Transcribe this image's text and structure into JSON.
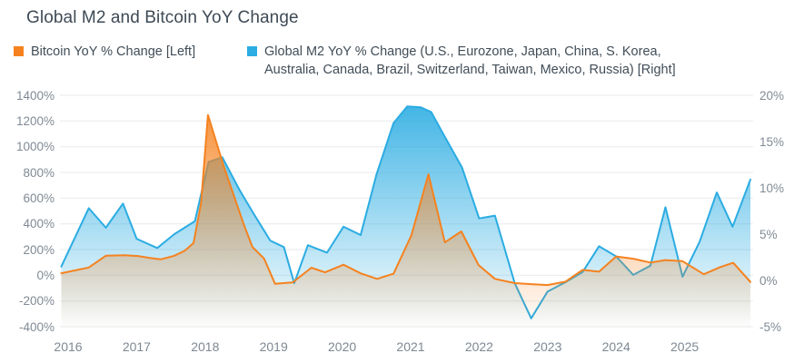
{
  "title": "Global M2 and Bitcoin YoY Change",
  "legend": [
    {
      "label": "Bitcoin YoY % Change [Left]",
      "color": "#F5821F"
    },
    {
      "label_line1": "Global M2 YoY % Change (U.S., Eurozone, Japan, China, S. Korea,",
      "label_line2": "Australia, Canada, Brazil, Switzerland, Taiwan, Mexico, Russia) [Right]",
      "color": "#2BACE2"
    }
  ],
  "colors": {
    "bitcoin_orange": "#F5821F",
    "m2_blue": "#2BACE2",
    "gridline": "#e7eaec",
    "axis_text": "#808a94",
    "title_text": "#3e4a55"
  },
  "chart_data": {
    "type": "area",
    "title": "Global M2 and Bitcoin YoY Change",
    "grid": true,
    "x_domain": [
      2015.88,
      2026.0
    ],
    "x_ticks": [
      {
        "label": "2016",
        "value": 2016
      },
      {
        "label": "2017",
        "value": 2017
      },
      {
        "label": "2018",
        "value": 2018
      },
      {
        "label": "2019",
        "value": 2019
      },
      {
        "label": "2020",
        "value": 2020
      },
      {
        "label": "2021",
        "value": 2021
      },
      {
        "label": "2022",
        "value": 2022
      },
      {
        "label": "2023",
        "value": 2023
      },
      {
        "label": "2024",
        "value": 2024
      },
      {
        "label": "2025",
        "value": 2025
      }
    ],
    "left_axis": {
      "min": -400,
      "max": 1400,
      "unit": "%",
      "ticks": [
        {
          "label": "1400%",
          "value": 1400
        },
        {
          "label": "1200%",
          "value": 1200
        },
        {
          "label": "1000%",
          "value": 1000
        },
        {
          "label": "800%",
          "value": 800
        },
        {
          "label": "600%",
          "value": 600
        },
        {
          "label": "400%",
          "value": 400
        },
        {
          "label": "200%",
          "value": 200
        },
        {
          "label": "0%",
          "value": 0
        },
        {
          "label": "-200%",
          "value": -200
        },
        {
          "label": "-400%",
          "value": -400
        }
      ]
    },
    "right_axis": {
      "min": -5,
      "max": 20,
      "unit": "%",
      "ticks": [
        {
          "label": "20%",
          "value": 20
        },
        {
          "label": "15%",
          "value": 15
        },
        {
          "label": "10%",
          "value": 10
        },
        {
          "label": "5%",
          "value": 5
        },
        {
          "label": "0%",
          "value": 0
        },
        {
          "label": "-5%",
          "value": -5
        }
      ]
    },
    "series": [
      {
        "name": "Bitcoin YoY % Change [Left]",
        "axis": "left",
        "color": "#F5821F",
        "points": [
          [
            2015.9,
            16
          ],
          [
            2016.16,
            45
          ],
          [
            2016.3,
            60
          ],
          [
            2016.55,
            152
          ],
          [
            2016.82,
            156
          ],
          [
            2017.02,
            150
          ],
          [
            2017.19,
            135
          ],
          [
            2017.35,
            124
          ],
          [
            2017.55,
            152
          ],
          [
            2017.7,
            190
          ],
          [
            2017.83,
            250
          ],
          [
            2017.94,
            560
          ],
          [
            2018.04,
            1247
          ],
          [
            2018.27,
            850
          ],
          [
            2018.47,
            540
          ],
          [
            2018.56,
            400
          ],
          [
            2018.69,
            220
          ],
          [
            2018.86,
            130
          ],
          [
            2019.02,
            -66
          ],
          [
            2019.28,
            -55
          ],
          [
            2019.55,
            59
          ],
          [
            2019.75,
            23
          ],
          [
            2020.02,
            82
          ],
          [
            2020.27,
            15
          ],
          [
            2020.51,
            -28
          ],
          [
            2020.75,
            12
          ],
          [
            2021.01,
            310
          ],
          [
            2021.26,
            786
          ],
          [
            2021.5,
            256
          ],
          [
            2021.74,
            341
          ],
          [
            2021.99,
            80
          ],
          [
            2022.23,
            -28
          ],
          [
            2022.52,
            -61
          ],
          [
            2022.76,
            -69
          ],
          [
            2023.0,
            -76
          ],
          [
            2023.26,
            -50
          ],
          [
            2023.51,
            42
          ],
          [
            2023.75,
            28
          ],
          [
            2024.0,
            146
          ],
          [
            2024.25,
            129
          ],
          [
            2024.5,
            99
          ],
          [
            2024.72,
            118
          ],
          [
            2024.97,
            110
          ],
          [
            2025.28,
            8
          ],
          [
            2025.52,
            64
          ],
          [
            2025.71,
            97
          ],
          [
            2025.96,
            -52
          ]
        ]
      },
      {
        "name": "Global M2 YoY % Change (U.S., Eurozone, Japan, China, S. Korea, Australia, Canada, Brazil, Switzerland, Taiwan, Mexico, Russia) [Right]",
        "axis": "right",
        "color": "#2BACE2",
        "points": [
          [
            2015.9,
            1.5
          ],
          [
            2016.3,
            7.8
          ],
          [
            2016.55,
            5.7
          ],
          [
            2016.8,
            8.3
          ],
          [
            2017.0,
            4.5
          ],
          [
            2017.3,
            3.5
          ],
          [
            2017.55,
            5.0
          ],
          [
            2017.7,
            5.7
          ],
          [
            2017.85,
            6.4
          ],
          [
            2018.05,
            12.8
          ],
          [
            2018.25,
            13.3
          ],
          [
            2018.5,
            9.8
          ],
          [
            2018.7,
            7.3
          ],
          [
            2018.95,
            4.3
          ],
          [
            2019.15,
            3.6
          ],
          [
            2019.3,
            -0.3
          ],
          [
            2019.5,
            3.8
          ],
          [
            2019.78,
            3.0
          ],
          [
            2020.02,
            5.8
          ],
          [
            2020.27,
            4.9
          ],
          [
            2020.5,
            11.4
          ],
          [
            2020.75,
            17.0
          ],
          [
            2020.95,
            18.8
          ],
          [
            2021.15,
            18.7
          ],
          [
            2021.3,
            18.2
          ],
          [
            2021.5,
            15.5
          ],
          [
            2021.75,
            12.2
          ],
          [
            2022.0,
            6.7
          ],
          [
            2022.23,
            7.0
          ],
          [
            2022.52,
            -0.3
          ],
          [
            2022.76,
            -4.1
          ],
          [
            2023.0,
            -1.2
          ],
          [
            2023.26,
            -0.2
          ],
          [
            2023.51,
            0.9
          ],
          [
            2023.75,
            3.7
          ],
          [
            2024.0,
            2.6
          ],
          [
            2024.25,
            0.6
          ],
          [
            2024.5,
            1.6
          ],
          [
            2024.72,
            7.9
          ],
          [
            2024.97,
            0.4
          ],
          [
            2025.22,
            4.2
          ],
          [
            2025.47,
            9.5
          ],
          [
            2025.7,
            5.8
          ],
          [
            2025.96,
            10.9
          ]
        ]
      }
    ]
  }
}
